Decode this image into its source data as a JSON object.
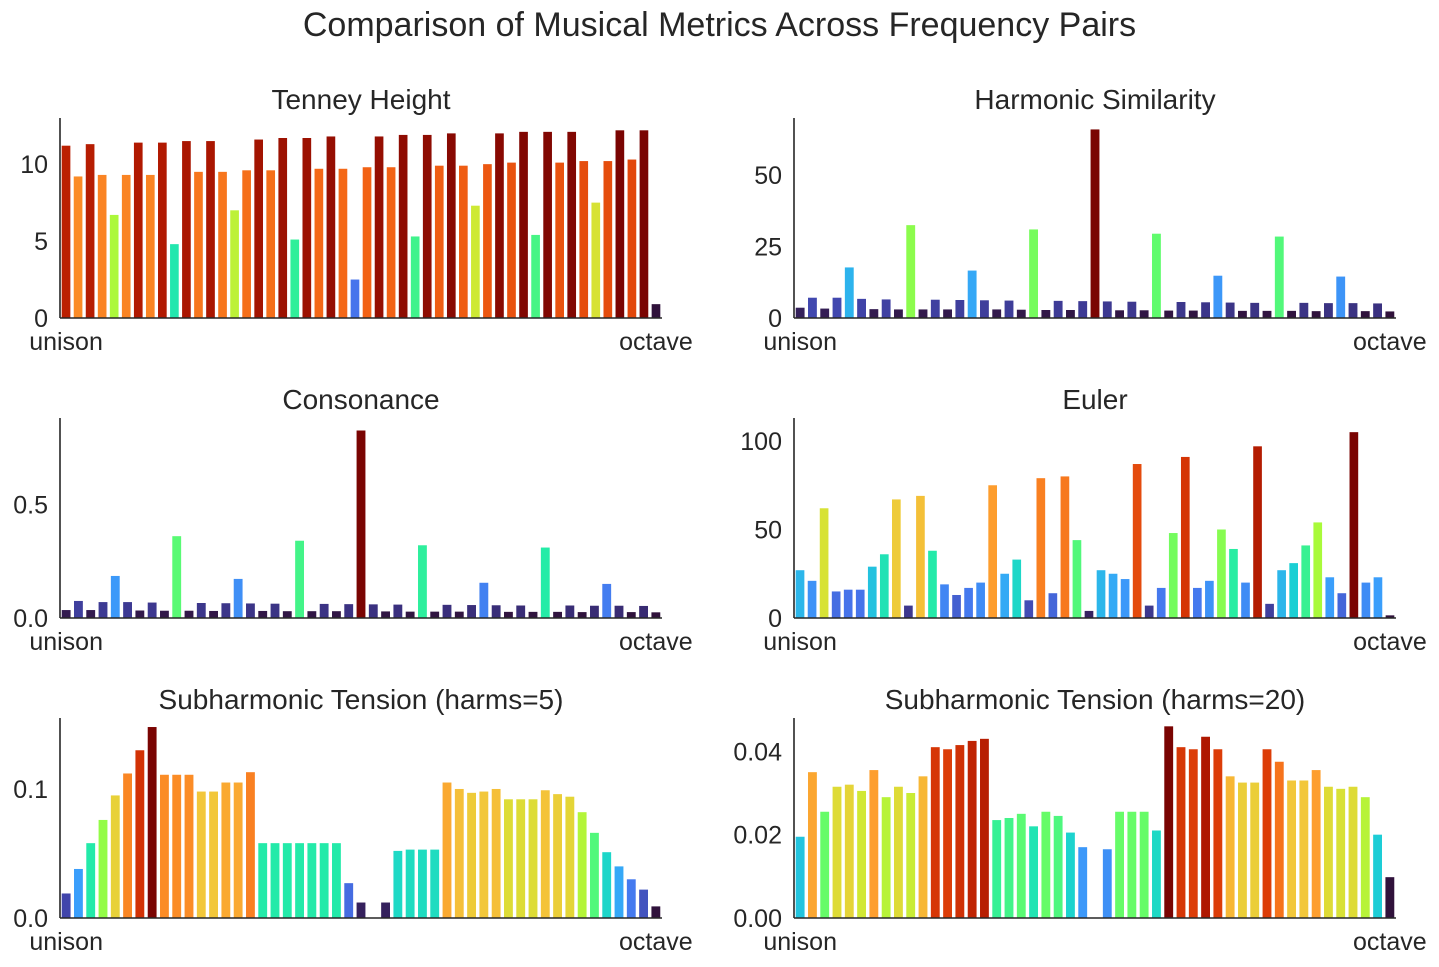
{
  "title": "Comparison of Musical Metrics Across Frequency Pairs",
  "colormap": "turbo",
  "chart_data": [
    {
      "type": "bar",
      "title": "Tenney Height",
      "xlabel": "",
      "ylabel": "",
      "x_tick_labels": [
        "unison",
        "octave"
      ],
      "ylim": [
        0,
        13
      ],
      "yticks": [
        0,
        5,
        10
      ],
      "values": [
        11.2,
        9.2,
        11.3,
        9.3,
        6.7,
        9.3,
        11.4,
        9.3,
        11.4,
        4.8,
        11.5,
        9.5,
        11.5,
        9.5,
        7.0,
        9.6,
        11.6,
        9.6,
        11.7,
        5.1,
        11.7,
        9.7,
        11.8,
        9.7,
        2.5,
        9.8,
        11.8,
        9.8,
        11.9,
        5.3,
        11.9,
        9.9,
        12.0,
        9.9,
        7.3,
        10.0,
        12.0,
        10.1,
        12.1,
        5.4,
        12.1,
        10.1,
        12.1,
        10.2,
        7.5,
        10.2,
        12.2,
        10.3,
        12.2,
        0.9
      ]
    },
    {
      "type": "bar",
      "title": "Harmonic Similarity",
      "xlabel": "",
      "ylabel": "",
      "x_tick_labels": [
        "unison",
        "octave"
      ],
      "ylim": [
        0,
        70
      ],
      "yticks": [
        0,
        25,
        50
      ],
      "values": [
        3.6,
        7.1,
        3.3,
        7.1,
        17.7,
        6.7,
        3.1,
        6.5,
        3.0,
        32.5,
        3.0,
        6.4,
        3.0,
        6.3,
        16.6,
        6.2,
        3.0,
        6.1,
        2.9,
        31.0,
        2.8,
        6.0,
        2.8,
        5.9,
        66.0,
        5.8,
        2.7,
        5.7,
        2.7,
        29.5,
        2.6,
        5.6,
        2.6,
        5.5,
        14.8,
        5.4,
        2.5,
        5.3,
        2.5,
        28.5,
        2.5,
        5.3,
        2.4,
        5.2,
        14.5,
        5.2,
        2.4,
        5.1,
        2.3
      ]
    },
    {
      "type": "bar",
      "title": "Consonance",
      "xlabel": "",
      "ylabel": "",
      "x_tick_labels": [
        "unison",
        "octave"
      ],
      "ylim": [
        0,
        0.88
      ],
      "yticks": [
        0.0,
        0.5
      ],
      "ytick_labels": [
        "0.0",
        "0.5"
      ],
      "values": [
        0.035,
        0.075,
        0.035,
        0.07,
        0.185,
        0.07,
        0.033,
        0.068,
        0.032,
        0.36,
        0.032,
        0.066,
        0.031,
        0.065,
        0.172,
        0.064,
        0.031,
        0.063,
        0.03,
        0.34,
        0.03,
        0.062,
        0.03,
        0.061,
        0.825,
        0.06,
        0.029,
        0.059,
        0.028,
        0.32,
        0.028,
        0.058,
        0.028,
        0.057,
        0.155,
        0.056,
        0.027,
        0.055,
        0.027,
        0.31,
        0.027,
        0.055,
        0.026,
        0.054,
        0.15,
        0.054,
        0.026,
        0.053,
        0.025
      ]
    },
    {
      "type": "bar",
      "title": "Euler",
      "xlabel": "",
      "ylabel": "",
      "x_tick_labels": [
        "unison",
        "octave"
      ],
      "ylim": [
        0,
        113
      ],
      "yticks": [
        0,
        50,
        100
      ],
      "values": [
        27,
        21,
        62,
        15,
        16,
        16,
        29,
        36,
        67,
        7,
        69,
        38,
        19,
        13,
        17,
        20,
        75,
        25,
        33,
        10,
        79,
        14,
        80,
        44,
        4,
        27,
        25,
        22,
        87,
        7,
        17,
        48,
        91,
        17,
        21,
        50,
        39,
        20,
        97,
        8,
        27,
        31,
        41,
        54,
        23,
        14,
        105,
        20,
        23,
        1.5
      ]
    },
    {
      "type": "bar",
      "title": "Subharmonic Tension (harms=5)",
      "xlabel": "",
      "ylabel": "",
      "x_tick_labels": [
        "unison",
        "octave"
      ],
      "ylim": [
        0,
        0.155
      ],
      "yticks": [
        0.0,
        0.1
      ],
      "ytick_labels": [
        "0.0",
        "0.1"
      ],
      "values": [
        0.019,
        0.038,
        0.058,
        0.076,
        0.095,
        0.112,
        0.13,
        0.148,
        0.111,
        0.111,
        0.111,
        0.098,
        0.098,
        0.105,
        0.105,
        0.113,
        0.058,
        0.058,
        0.058,
        0.058,
        0.058,
        0.058,
        0.058,
        0.027,
        0.012,
        null,
        0.012,
        0.052,
        0.053,
        0.053,
        0.053,
        0.105,
        0.1,
        0.097,
        0.098,
        0.1,
        0.092,
        0.092,
        0.092,
        0.099,
        0.096,
        0.094,
        0.082,
        0.066,
        0.051,
        0.04,
        0.03,
        0.022,
        0.009
      ]
    },
    {
      "type": "bar",
      "title": "Subharmonic Tension (harms=20)",
      "xlabel": "",
      "ylabel": "",
      "x_tick_labels": [
        "unison",
        "octave"
      ],
      "ylim": [
        0,
        0.048
      ],
      "yticks": [
        0.0,
        0.02,
        0.04
      ],
      "ytick_labels": [
        "0.00",
        "0.02",
        "0.04"
      ],
      "values": [
        0.0195,
        0.035,
        0.0255,
        0.0315,
        0.032,
        0.0305,
        0.0355,
        0.029,
        0.0315,
        0.03,
        0.034,
        0.041,
        0.0405,
        0.0415,
        0.0425,
        0.043,
        0.0235,
        0.024,
        0.025,
        0.022,
        0.0255,
        0.0245,
        0.0205,
        0.017,
        null,
        0.0165,
        0.0255,
        0.0255,
        0.0255,
        0.021,
        0.046,
        0.041,
        0.0405,
        0.0435,
        0.0405,
        0.034,
        0.0325,
        0.0325,
        0.0405,
        0.0375,
        0.033,
        0.033,
        0.0355,
        0.0315,
        0.031,
        0.0315,
        0.029,
        0.02,
        0.0098
      ]
    }
  ]
}
